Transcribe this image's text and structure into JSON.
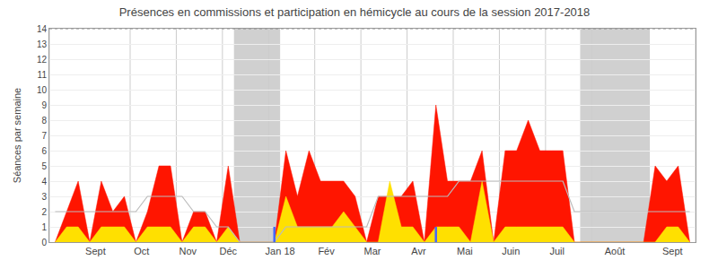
{
  "chart_data": {
    "type": "area",
    "title": "Présences en commissions et participation en hémicycle au cours de la session 2017-2018",
    "y_label": "Séances par semaine",
    "x": [
      0,
      1,
      2,
      3,
      4,
      5,
      6,
      7,
      8,
      9,
      10,
      11,
      12,
      13,
      14,
      15,
      16,
      17,
      18,
      19,
      20,
      21,
      22,
      23,
      24,
      25,
      26,
      27,
      28,
      29,
      30,
      31,
      32,
      33,
      34,
      35,
      36,
      37,
      38,
      39,
      40,
      41,
      42,
      43,
      44,
      45,
      46,
      47,
      48,
      49,
      50,
      51,
      52,
      53,
      54,
      55
    ],
    "series": [
      {
        "type": "area",
        "color": "#ff1500",
        "values": [
          0,
          2,
          4,
          0,
          4,
          2,
          3,
          0,
          2,
          5,
          5,
          0,
          2,
          2,
          0,
          5,
          0,
          0,
          0,
          0,
          6,
          3,
          6,
          4,
          4,
          4,
          3,
          0,
          3,
          3,
          3,
          4,
          0,
          9,
          4,
          4,
          4,
          6,
          0,
          6,
          6,
          8,
          6,
          6,
          6,
          0,
          0,
          0,
          0,
          0,
          0,
          0,
          5,
          4,
          5,
          0
        ]
      },
      {
        "type": "area",
        "color": "#ffe000",
        "values": [
          0,
          1,
          1,
          0,
          1,
          1,
          1,
          0,
          1,
          1,
          1,
          0,
          1,
          1,
          0,
          1,
          0,
          0,
          0,
          0,
          3,
          1,
          1,
          1,
          1,
          2,
          1,
          0,
          0,
          4,
          1,
          1,
          0,
          1,
          1,
          1,
          0,
          4,
          0,
          1,
          1,
          1,
          1,
          1,
          1,
          0,
          0,
          0,
          0,
          0,
          0,
          0,
          0,
          1,
          1,
          0
        ]
      },
      {
        "type": "line",
        "color": "#bbbbbb",
        "values": [
          2,
          2,
          2,
          2,
          2,
          2,
          2,
          2,
          3,
          3,
          3,
          3,
          2,
          2,
          1,
          1,
          0,
          0,
          0,
          0,
          1,
          1,
          1,
          1,
          1,
          1,
          1,
          1,
          3,
          3,
          3,
          3,
          3,
          3,
          3,
          4,
          4,
          4,
          4,
          4,
          4,
          4,
          4,
          4,
          4,
          2,
          2,
          2,
          2,
          2,
          2,
          2,
          2,
          2,
          2,
          2
        ]
      }
    ],
    "spikes": {
      "x": [
        19,
        33
      ],
      "height": 1.0,
      "color": "#4466ff"
    },
    "recess": {
      "regions": [
        [
          15.5,
          19.5
        ],
        [
          45.5,
          51.5
        ]
      ],
      "color": "#aaaaaa"
    },
    "reference_line": {
      "y": 14,
      "color": "#888888",
      "line_style": "dotted"
    },
    "month_boundaries": {
      "x": [
        -0.5,
        6.5,
        10.5,
        14.5,
        18.5,
        22.5,
        26.5,
        30.5,
        34.5,
        38.5,
        42.5,
        46.5,
        51.5,
        55.5
      ],
      "color": "#cccccc"
    },
    "xlim": [
      -0.5,
      55.5
    ],
    "xticks": [
      {
        "value": 3.5,
        "label": "Sept"
      },
      {
        "value": 7.5,
        "label": "Oct"
      },
      {
        "value": 11.5,
        "label": "Nov"
      },
      {
        "value": 15,
        "label": "Déc"
      },
      {
        "value": 19.5,
        "label": "Jan 18"
      },
      {
        "value": 23.5,
        "label": "Fév"
      },
      {
        "value": 27.5,
        "label": "Mar"
      },
      {
        "value": 31.5,
        "label": "Avr"
      },
      {
        "value": 35.5,
        "label": "Mai"
      },
      {
        "value": 39.5,
        "label": "Juin"
      },
      {
        "value": 43.5,
        "label": "Juil"
      },
      {
        "value": 48.5,
        "label": "Août"
      },
      {
        "value": 53.5,
        "label": "Sept"
      }
    ],
    "ylim": [
      0,
      14
    ],
    "yticks": [
      0,
      1,
      2,
      3,
      4,
      5,
      6,
      7,
      8,
      9,
      10,
      11,
      12,
      13,
      14
    ],
    "grid": true
  }
}
